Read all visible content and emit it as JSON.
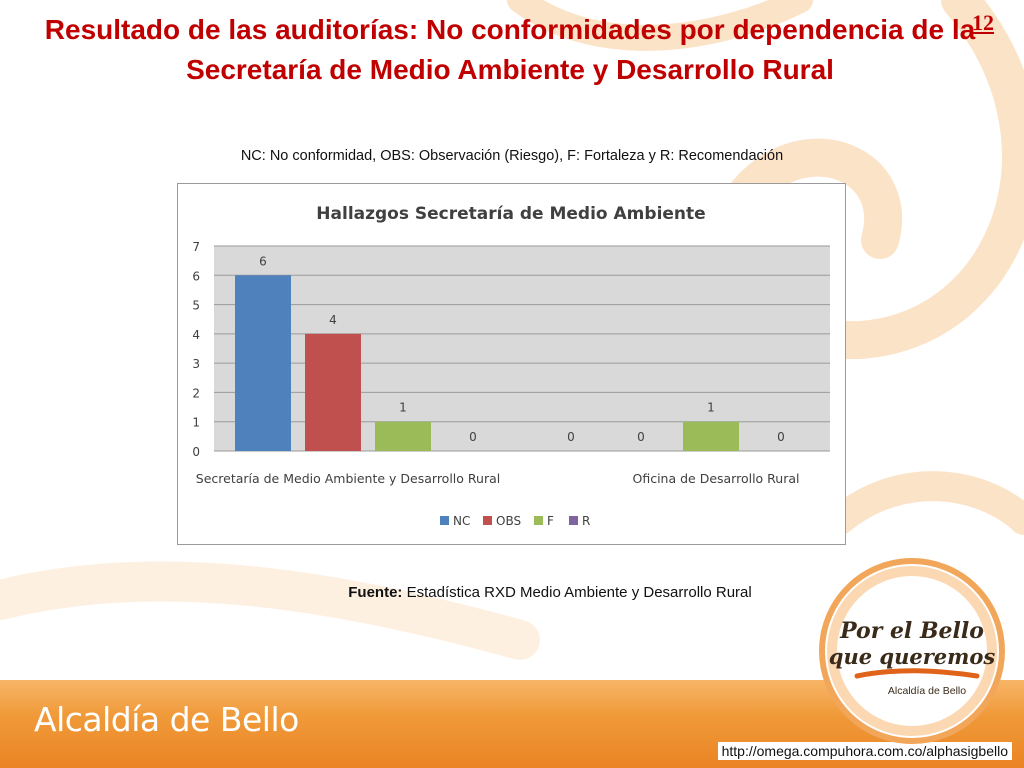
{
  "slide": {
    "title": "Resultado de las auditorías: No conformidades por dependencia de la Secretaría de Medio Ambiente y Desarrollo Rural",
    "page_number": "12",
    "legend_note": "NC: No conformidad, OBS: Observación (Riesgo), F: Fortaleza y R: Recomendación",
    "source_label": "Fuente:",
    "source_text": " Estadística RXD Medio Ambiente y Desarrollo Rural",
    "footer_logo": "Alcaldía de Bello",
    "url": "http://omega.compuhora.com.co/alphasigbello",
    "seal": {
      "line1": "Por el Bello",
      "line2": "que queremos",
      "line3": "Alcaldía de Bello"
    }
  },
  "colors": {
    "title": "#c00000",
    "NC": "#4f81bd",
    "OBS": "#c0504d",
    "F": "#9bbb59",
    "R": "#8064a2",
    "plot_bg": "#d9d9d9",
    "footer": "#ef9234"
  },
  "chart_data": {
    "type": "bar",
    "title": "Hallazgos Secretaría de Medio Ambiente",
    "categories": [
      "Secretaría de Medio Ambiente y Desarrollo Rural",
      "Oficina de Desarrollo Rural"
    ],
    "series": [
      {
        "name": "NC",
        "values": [
          6,
          0
        ]
      },
      {
        "name": "OBS",
        "values": [
          4,
          0
        ]
      },
      {
        "name": "F",
        "values": [
          1,
          1
        ]
      },
      {
        "name": "R",
        "values": [
          0,
          0
        ]
      }
    ],
    "ylim": [
      0,
      7
    ],
    "yticks": [
      0,
      1,
      2,
      3,
      4,
      5,
      6,
      7
    ],
    "xlabel": "",
    "ylabel": "",
    "grid": true,
    "legend": "bottom",
    "data_labels": true
  }
}
